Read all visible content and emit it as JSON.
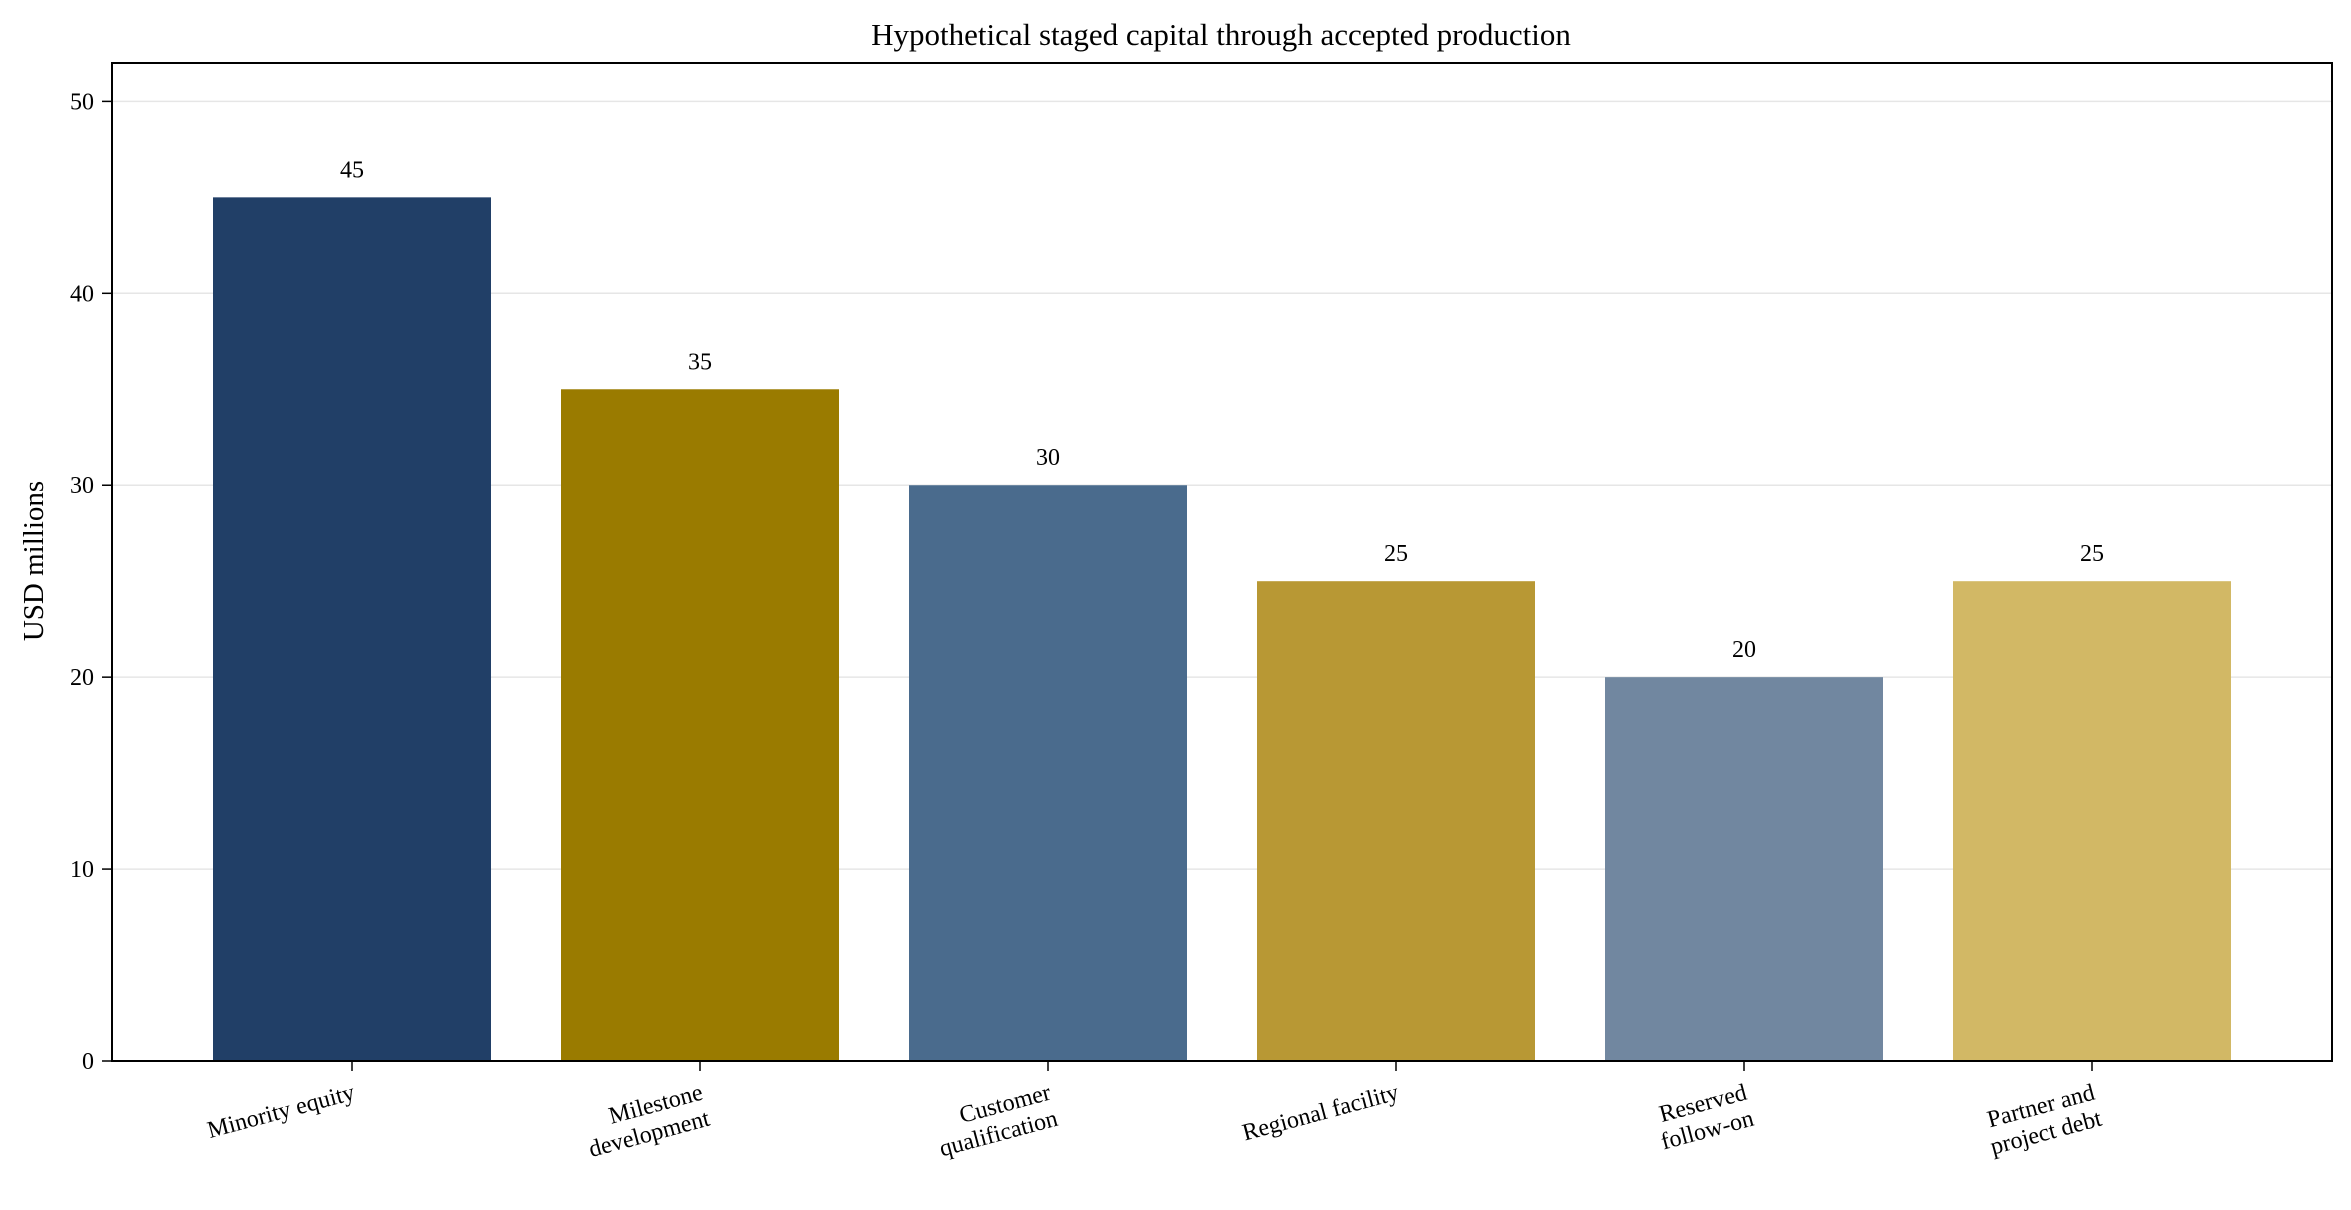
{
  "chart_data": {
    "type": "bar",
    "title": "Hypothetical staged capital through accepted production",
    "xlabel": "",
    "ylabel": "USD millions",
    "ylim": [
      0,
      52
    ],
    "yticks": [
      0,
      10,
      20,
      30,
      40,
      50
    ],
    "grid": "y-major",
    "legend": "none",
    "categories": [
      [
        "Minority equity"
      ],
      [
        "Milestone",
        "development"
      ],
      [
        "Customer",
        "qualification"
      ],
      [
        "Regional facility"
      ],
      [
        "Reserved",
        "follow-on"
      ],
      [
        "Partner and",
        "project debt"
      ]
    ],
    "values": [
      45,
      35,
      30,
      25,
      20,
      25
    ],
    "value_labels": [
      "45",
      "35",
      "30",
      "25",
      "20",
      "25"
    ],
    "colors": [
      "#213f67",
      "#9a7b00",
      "#4a6b8d",
      "#b89834",
      "#7187a0",
      "#d2b865"
    ]
  }
}
